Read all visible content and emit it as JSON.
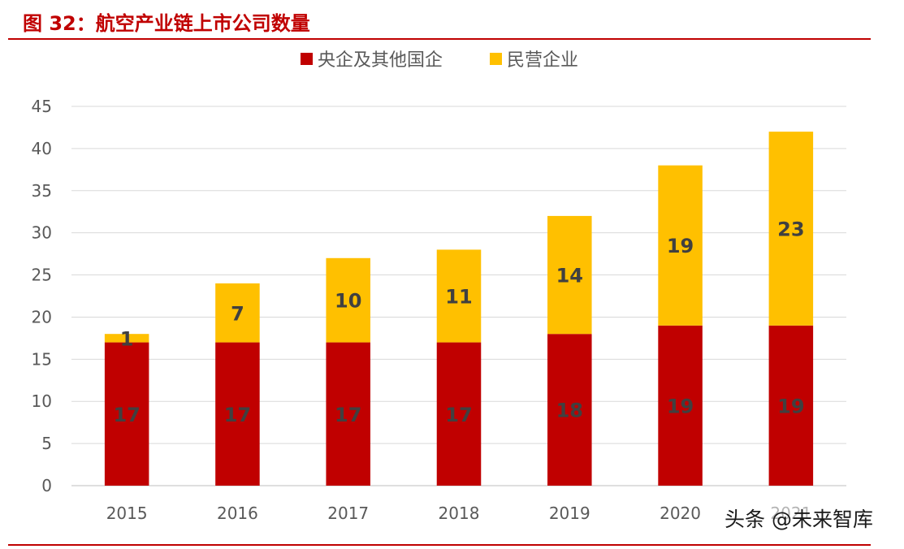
{
  "figure": {
    "title": "图 32：航空产业链上市公司数量",
    "accent_color": "#C00000",
    "watermark": "头条 @未来智库"
  },
  "chart_data": {
    "type": "bar",
    "stacked": true,
    "title": "",
    "xlabel": "",
    "ylabel": "",
    "categories": [
      "2015",
      "2016",
      "2017",
      "2018",
      "2019",
      "2020",
      "2021"
    ],
    "series": [
      {
        "name": "央企及其他国企",
        "color": "#C00000",
        "values": [
          17,
          17,
          17,
          17,
          18,
          19,
          19
        ],
        "labels": [
          "17",
          "17",
          "17",
          "17",
          "18",
          "19",
          "19"
        ]
      },
      {
        "name": "民营企业",
        "color": "#FFC000",
        "values": [
          1,
          7,
          10,
          11,
          14,
          19,
          23
        ],
        "labels": [
          "1",
          "7",
          "10",
          "11",
          "14",
          "19",
          "23"
        ]
      }
    ],
    "ylim": [
      0,
      45
    ],
    "yticks": [
      0,
      5,
      10,
      15,
      20,
      25,
      30,
      35,
      40,
      45
    ],
    "ytick_labels": [
      "0",
      "5",
      "10",
      "15",
      "20",
      "25",
      "30",
      "35",
      "40",
      "45"
    ],
    "grid": true,
    "legend_position": "top-center"
  }
}
